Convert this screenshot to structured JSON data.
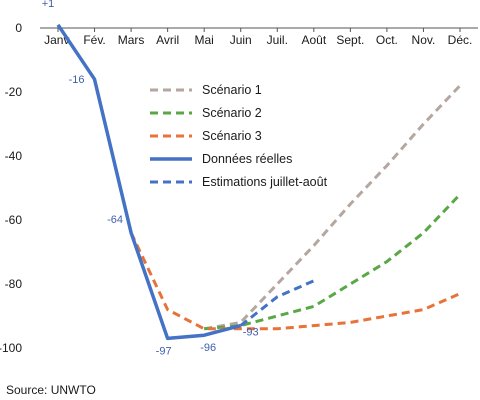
{
  "chart_data": {
    "type": "line",
    "title": "",
    "xlabel": "",
    "ylabel": "",
    "categories": [
      "Janv.",
      "Fév.",
      "Mars",
      "Avril",
      "Mai",
      "Juin",
      "Juil.",
      "Août",
      "Sept.",
      "Oct.",
      "Nov.",
      "Déc."
    ],
    "ylim": [
      -100,
      0
    ],
    "yticks": [
      0,
      -20,
      -40,
      -60,
      -80,
      -100
    ],
    "ytick_labels": [
      "0",
      "-20",
      "-40",
      "-60",
      "-80",
      "-100"
    ],
    "grid": false,
    "legend_position": "upper-center",
    "series": [
      {
        "name": "Scénario 1",
        "style": "dashed",
        "color": "#b5a6a0",
        "values": [
          null,
          null,
          null,
          null,
          -94,
          -92,
          -80,
          -68,
          -55,
          -43,
          -30,
          -18
        ]
      },
      {
        "name": "Scénario 2",
        "style": "dashed",
        "color": "#5aa845",
        "values": [
          null,
          null,
          null,
          null,
          -94,
          -93,
          -90,
          -87,
          -80,
          -73,
          -64,
          -52
        ]
      },
      {
        "name": "Scénario 3",
        "style": "dashed",
        "color": "#e8733a",
        "values": [
          null,
          null,
          -64,
          -88,
          -94,
          -94,
          -94,
          -93,
          -92,
          -90,
          -88,
          -83
        ]
      },
      {
        "name": "Données réelles",
        "style": "solid",
        "color": "#4472c4",
        "values": [
          1,
          -16,
          -64,
          -97,
          -96,
          -93,
          null,
          null,
          null,
          null,
          null,
          null
        ]
      },
      {
        "name": "Estimations juillet-août",
        "style": "dashed",
        "color": "#4472c4",
        "values": [
          null,
          null,
          null,
          null,
          null,
          -93,
          -84,
          -79,
          null,
          null,
          null,
          null
        ]
      }
    ],
    "data_labels": [
      {
        "text": "+1",
        "category": "Janv.",
        "value": 1
      },
      {
        "text": "-16",
        "category": "Fév.",
        "value": -16
      },
      {
        "text": "-64",
        "category": "Mars",
        "value": -64
      },
      {
        "text": "-97",
        "category": "Avril",
        "value": -97
      },
      {
        "text": "-96",
        "category": "Mai",
        "value": -96
      },
      {
        "text": "-93",
        "category": "Juin",
        "value": -93
      }
    ],
    "source": "Source: UNWTO"
  }
}
